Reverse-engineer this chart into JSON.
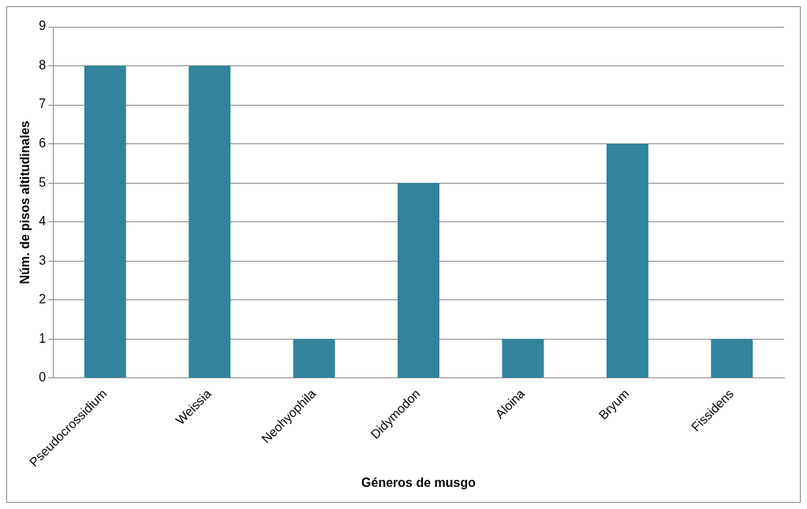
{
  "chart_data": {
    "type": "bar",
    "xlabel": "Géneros de musgo",
    "ylabel": "Núm. de pisos altitudinales",
    "categories": [
      "Pseudocrossidium",
      "Weissia",
      "Neohyophila",
      "Didymodon",
      "Aloina",
      "Bryum",
      "Fissidens"
    ],
    "values": [
      8,
      8,
      1,
      5,
      1,
      6,
      1
    ],
    "color": "#31849b",
    "ylim": [
      0,
      9
    ],
    "yticks": [
      0,
      1,
      2,
      3,
      4,
      5,
      6,
      7,
      8,
      9
    ],
    "grid": "y"
  }
}
